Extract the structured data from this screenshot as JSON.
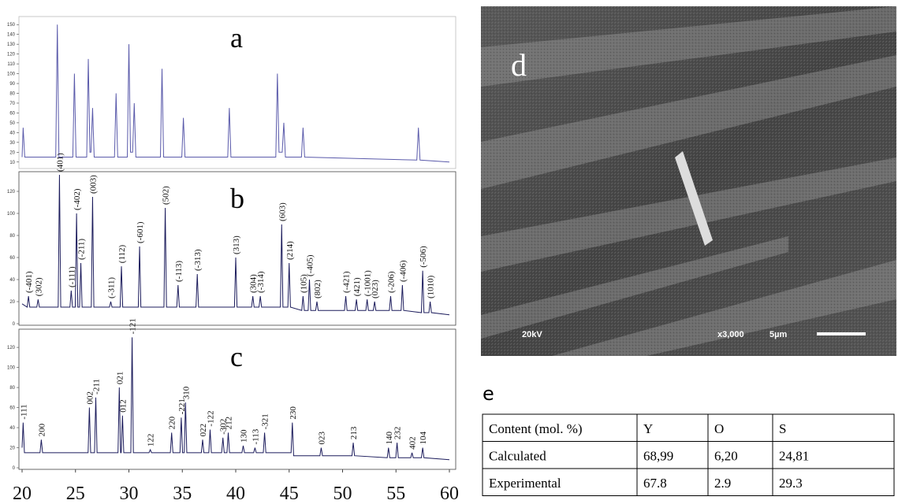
{
  "chart_data": [
    {
      "type": "line",
      "title": "a",
      "color": "#5b5bab",
      "xlim": [
        20,
        60
      ],
      "ylim": [
        5,
        155
      ],
      "yticks": [
        10,
        20,
        30,
        40,
        50,
        60,
        70,
        80,
        90,
        100,
        110,
        120,
        130,
        140,
        150
      ],
      "x": [
        20,
        20.1,
        20.25,
        23.15,
        23.3,
        23.45,
        24.75,
        24.9,
        25.05,
        26.05,
        26.2,
        26.35,
        26.45,
        26.6,
        26.75,
        28.65,
        28.8,
        28.95,
        29.85,
        30.0,
        30.15,
        30.35,
        30.5,
        30.65,
        32.95,
        33.1,
        33.25,
        34.95,
        35.1,
        35.25,
        39.25,
        39.4,
        39.55,
        43.75,
        43.9,
        44.05,
        44.35,
        44.5,
        44.65,
        46.15,
        46.3,
        46.45,
        56.95,
        57.1,
        57.25,
        60
      ],
      "values": [
        15,
        45,
        15,
        15,
        150,
        15,
        15,
        100,
        15,
        15,
        115,
        20,
        20,
        65,
        15,
        15,
        80,
        15,
        15,
        130,
        20,
        20,
        70,
        15,
        15,
        105,
        15,
        15,
        55,
        15,
        15,
        65,
        15,
        15,
        100,
        20,
        20,
        50,
        15,
        15,
        45,
        15,
        12,
        45,
        12,
        10
      ]
    },
    {
      "type": "line",
      "title": "b",
      "color": "#1c1c5c",
      "xlim": [
        20,
        60
      ],
      "ylim": [
        0,
        135
      ],
      "yticks": [
        0,
        20,
        40,
        60,
        80,
        100,
        120
      ],
      "x": [
        20,
        20.48,
        20.6,
        20.72,
        21.38,
        21.5,
        21.62,
        23.38,
        23.5,
        23.62,
        24.48,
        24.6,
        24.72,
        24.98,
        25.1,
        25.22,
        25.38,
        25.5,
        25.62,
        26.48,
        26.6,
        26.72,
        28.18,
        28.3,
        28.42,
        29.18,
        29.3,
        29.42,
        30.88,
        31.0,
        31.12,
        33.28,
        33.4,
        33.52,
        34.48,
        34.6,
        34.72,
        36.28,
        36.4,
        36.52,
        39.88,
        40.0,
        40.12,
        41.48,
        41.6,
        41.72,
        42.18,
        42.3,
        42.42,
        44.18,
        44.3,
        44.42,
        44.88,
        45.0,
        45.12,
        46.18,
        46.3,
        46.42,
        46.78,
        46.9,
        47.02,
        47.48,
        47.6,
        47.72,
        50.18,
        50.3,
        50.42,
        51.18,
        51.3,
        51.42,
        52.18,
        52.3,
        52.42,
        52.88,
        53.0,
        53.12,
        54.38,
        54.5,
        54.62,
        55.48,
        55.6,
        55.72,
        57.38,
        57.5,
        57.62,
        58.08,
        58.2,
        58.32,
        60
      ],
      "values": [
        18,
        15,
        25,
        15,
        15,
        22,
        15,
        15,
        135,
        15,
        15,
        30,
        15,
        15,
        100,
        15,
        15,
        55,
        15,
        15,
        115,
        15,
        15,
        20,
        15,
        15,
        52,
        15,
        15,
        70,
        15,
        15,
        105,
        15,
        15,
        35,
        15,
        15,
        45,
        15,
        15,
        60,
        15,
        15,
        25,
        15,
        15,
        25,
        15,
        15,
        90,
        15,
        15,
        55,
        15,
        12,
        25,
        12,
        12,
        40,
        12,
        12,
        20,
        12,
        12,
        25,
        12,
        12,
        22,
        12,
        12,
        22,
        12,
        12,
        20,
        12,
        12,
        25,
        12,
        12,
        35,
        12,
        10,
        48,
        10,
        10,
        20,
        10,
        8
      ],
      "annotations": [
        {
          "text": "(-401)",
          "x": 20.6
        },
        {
          "text": "(302)",
          "x": 21.5
        },
        {
          "text": "(401)",
          "x": 23.5
        },
        {
          "text": "(-111)",
          "x": 24.6
        },
        {
          "text": "(-402)",
          "x": 25.1
        },
        {
          "text": "(-211)",
          "x": 25.5
        },
        {
          "text": "(003)",
          "x": 26.6
        },
        {
          "text": "(-311)",
          "x": 28.3
        },
        {
          "text": "(112)",
          "x": 29.3
        },
        {
          "text": "(-601)",
          "x": 31.0
        },
        {
          "text": "(502)",
          "x": 33.4
        },
        {
          "text": "(-113)",
          "x": 34.6
        },
        {
          "text": "(-313)",
          "x": 36.4
        },
        {
          "text": "(313)",
          "x": 40.0
        },
        {
          "text": "(304)",
          "x": 41.6
        },
        {
          "text": "(-314)",
          "x": 42.3
        },
        {
          "text": "(603)",
          "x": 44.3
        },
        {
          "text": "(214)",
          "x": 45.0
        },
        {
          "text": "(105)",
          "x": 46.3
        },
        {
          "text": "(-405)",
          "x": 46.9
        },
        {
          "text": "(802)",
          "x": 47.6
        },
        {
          "text": "(-421)",
          "x": 50.3
        },
        {
          "text": "(421)",
          "x": 51.3
        },
        {
          "text": "(-1001)",
          "x": 52.3
        },
        {
          "text": "(023)",
          "x": 53.0
        },
        {
          "text": "(-206)",
          "x": 54.5
        },
        {
          "text": "(-406)",
          "x": 55.6
        },
        {
          "text": "(-506)",
          "x": 57.5
        },
        {
          "text": "(1010)",
          "x": 58.2
        }
      ]
    },
    {
      "type": "line",
      "title": "c",
      "color": "#1c1c5c",
      "xlim": [
        20,
        60
      ],
      "ylim": [
        0,
        135
      ],
      "yticks": [
        0,
        20,
        40,
        60,
        80,
        100,
        120
      ],
      "xticks": [
        20,
        25,
        30,
        35,
        40,
        45,
        50,
        55,
        60
      ],
      "x": [
        20,
        20.1,
        20.22,
        21.68,
        21.8,
        21.92,
        26.18,
        26.3,
        26.42,
        26.78,
        26.9,
        27.02,
        28.98,
        29.1,
        29.22,
        29.28,
        29.4,
        29.52,
        30.18,
        30.3,
        30.42,
        31.88,
        32.0,
        32.12,
        33.88,
        34.0,
        34.12,
        34.78,
        34.9,
        35.02,
        35.18,
        35.3,
        35.42,
        36.78,
        36.9,
        37.02,
        37.48,
        37.6,
        37.72,
        38.68,
        38.8,
        38.92,
        39.18,
        39.3,
        39.42,
        40.58,
        40.7,
        40.82,
        41.68,
        41.8,
        41.92,
        42.58,
        42.7,
        42.82,
        45.18,
        45.3,
        45.42,
        47.88,
        48.0,
        48.12,
        50.88,
        51.0,
        51.12,
        54.18,
        54.3,
        54.42,
        54.98,
        55.1,
        55.22,
        56.38,
        56.5,
        56.62,
        57.38,
        57.5,
        57.62,
        60
      ],
      "values": [
        20,
        45,
        15,
        15,
        28,
        15,
        15,
        60,
        15,
        15,
        70,
        15,
        15,
        80,
        15,
        15,
        52,
        15,
        15,
        130,
        15,
        15,
        18,
        15,
        15,
        35,
        15,
        15,
        50,
        15,
        15,
        65,
        15,
        15,
        28,
        15,
        15,
        38,
        15,
        15,
        30,
        15,
        15,
        35,
        15,
        15,
        22,
        15,
        15,
        20,
        15,
        15,
        35,
        15,
        15,
        45,
        12,
        12,
        20,
        12,
        12,
        25,
        12,
        10,
        20,
        10,
        10,
        25,
        10,
        10,
        15,
        10,
        10,
        20,
        10,
        8
      ],
      "annotations": [
        {
          "text": "-111",
          "x": 20.1
        },
        {
          "text": "200",
          "x": 21.8
        },
        {
          "text": "002",
          "x": 26.3
        },
        {
          "text": "-211",
          "x": 26.9
        },
        {
          "text": "021",
          "x": 29.1
        },
        {
          "text": "012",
          "x": 29.4
        },
        {
          "text": "-121",
          "x": 30.3
        },
        {
          "text": "122",
          "x": 32.0
        },
        {
          "text": "220",
          "x": 34.0
        },
        {
          "text": "-221",
          "x": 34.9
        },
        {
          "text": "310",
          "x": 35.3
        },
        {
          "text": "022",
          "x": 36.9
        },
        {
          "text": "-122",
          "x": 37.6
        },
        {
          "text": "-302",
          "x": 38.8
        },
        {
          "text": "212",
          "x": 39.3
        },
        {
          "text": "130",
          "x": 40.7
        },
        {
          "text": "-113",
          "x": 41.8
        },
        {
          "text": "-321",
          "x": 42.7
        },
        {
          "text": "230",
          "x": 45.3
        },
        {
          "text": "023",
          "x": 48.0
        },
        {
          "text": "213",
          "x": 51.0
        },
        {
          "text": "140",
          "x": 54.3
        },
        {
          "text": "232",
          "x": 55.1
        },
        {
          "text": "402",
          "x": 56.5
        },
        {
          "text": "104",
          "x": 57.5
        }
      ]
    }
  ],
  "sem": {
    "label": "d",
    "voltage": "20kV",
    "magnification": "x3,000",
    "scale": "5µm"
  },
  "table": {
    "label": "e",
    "rows": [
      [
        "Content (mol. %)",
        "Y",
        "O",
        "S"
      ],
      [
        "Calculated",
        "68,99",
        "6,20",
        "24,81"
      ],
      [
        "Experimental",
        "67.8",
        "2.9",
        "29.3"
      ]
    ]
  }
}
